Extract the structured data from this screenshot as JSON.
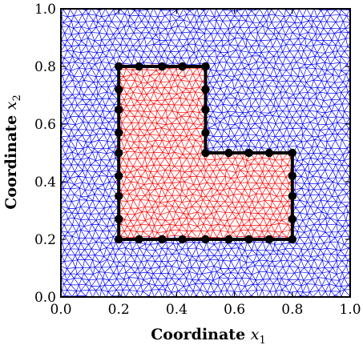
{
  "figure": {
    "x_axis_label": "Coordinate",
    "x_axis_variable": "x",
    "x_axis_subscript": "1",
    "y_axis_label": "Coordinate",
    "y_axis_variable": "x",
    "y_axis_subscript": "2",
    "x_ticks": [
      "0.0",
      "0.2",
      "0.4",
      "0.6",
      "0.8",
      "1.0"
    ],
    "y_ticks": [
      "0.0",
      "0.2",
      "0.4",
      "0.6",
      "0.8",
      "1.0"
    ],
    "x_range": [
      0,
      1
    ],
    "y_range": [
      0,
      1
    ],
    "colors": {
      "outer_mesh": "#0000ff",
      "inner_mesh": "#ff0000",
      "boundary": "#000000",
      "nodes": "#000000"
    },
    "domain_square": [
      [
        0,
        0
      ],
      [
        1,
        0
      ],
      [
        1,
        1
      ],
      [
        0,
        1
      ]
    ],
    "l_shape_boundary": [
      [
        0.2,
        0.2
      ],
      [
        0.8,
        0.2
      ],
      [
        0.8,
        0.5
      ],
      [
        0.5,
        0.5
      ],
      [
        0.5,
        0.8
      ],
      [
        0.2,
        0.8
      ]
    ],
    "boundary_nodes": [
      [
        0.2,
        0.2
      ],
      [
        0.27,
        0.2
      ],
      [
        0.35,
        0.2
      ],
      [
        0.42,
        0.2
      ],
      [
        0.5,
        0.2
      ],
      [
        0.58,
        0.2
      ],
      [
        0.65,
        0.2
      ],
      [
        0.72,
        0.2
      ],
      [
        0.8,
        0.2
      ],
      [
        0.8,
        0.27
      ],
      [
        0.8,
        0.35
      ],
      [
        0.8,
        0.42
      ],
      [
        0.8,
        0.5
      ],
      [
        0.72,
        0.5
      ],
      [
        0.65,
        0.5
      ],
      [
        0.58,
        0.5
      ],
      [
        0.5,
        0.5
      ],
      [
        0.5,
        0.57
      ],
      [
        0.5,
        0.65
      ],
      [
        0.5,
        0.72
      ],
      [
        0.5,
        0.8
      ],
      [
        0.42,
        0.8
      ],
      [
        0.35,
        0.8
      ],
      [
        0.27,
        0.8
      ],
      [
        0.2,
        0.8
      ],
      [
        0.2,
        0.72
      ],
      [
        0.2,
        0.65
      ],
      [
        0.2,
        0.57
      ],
      [
        0.2,
        0.5
      ],
      [
        0.2,
        0.42
      ],
      [
        0.2,
        0.35
      ],
      [
        0.2,
        0.27
      ]
    ],
    "mesh_spacing": 0.024
  }
}
